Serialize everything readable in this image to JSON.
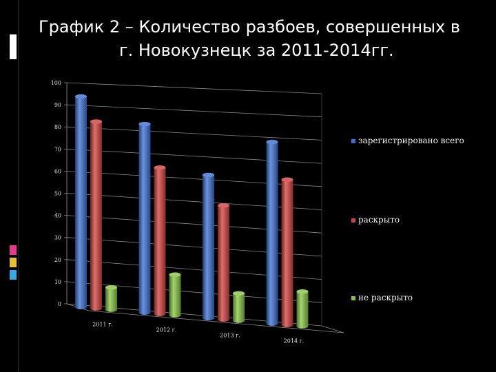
{
  "slide": {
    "title_line1": "График 2 – Количество разбоев, совершенных в",
    "title_line2": "г. Новокузнецк за  2011-2014гг."
  },
  "chart_data": {
    "type": "bar",
    "title": "График 2 – Количество разбоев, совершенных в г. Новокузнецк за 2011-2014гг.",
    "categories": [
      "2011 г.",
      "2012 г.",
      "2013 г.",
      "2014 г."
    ],
    "series": [
      {
        "name": "зарегистрировано всего",
        "values": [
          95,
          84,
          63,
          79
        ],
        "color": "#3b6fd1"
      },
      {
        "name": "раскрыто",
        "values": [
          84,
          65,
          50,
          63
        ],
        "color": "#d0403c"
      },
      {
        "name": "не раскрыто",
        "values": [
          10,
          18,
          12,
          15
        ],
        "color": "#86c440"
      }
    ],
    "ylim": [
      0,
      100
    ],
    "yticks": [
      0,
      10,
      20,
      30,
      40,
      50,
      60,
      70,
      80,
      90,
      100
    ],
    "grid": true,
    "legend": "right",
    "style": "3d-cylinder"
  }
}
